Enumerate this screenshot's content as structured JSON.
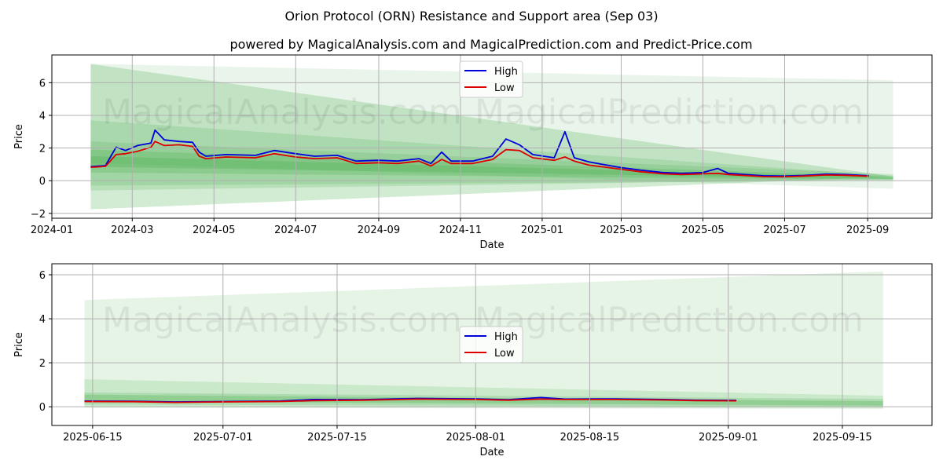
{
  "titles": {
    "main": "Orion Protocol (ORN) Resistance and Support area (Sep 03)",
    "sub": "powered by MagicalAnalysis.com and MagicalPrediction.com and Predict-Price.com"
  },
  "watermarks": [
    "MagicalAnalysis.com",
    "MagicalPrediction.com"
  ],
  "colors": {
    "high": "#0000dd",
    "low": "#dd0000",
    "band": "#4caf50",
    "grid": "#b0b0b0"
  },
  "chart_data": [
    {
      "type": "line",
      "xlabel": "Date",
      "ylabel": "Price",
      "xlim": [
        "2024-01-01",
        "2025-10-19"
      ],
      "ylim": [
        -2.3,
        7.7
      ],
      "grid": true,
      "legend": "top-center",
      "x_ticks": [
        "2024-01",
        "2024-03",
        "2024-05",
        "2024-07",
        "2024-09",
        "2024-11",
        "2025-01",
        "2025-03",
        "2025-05",
        "2025-07",
        "2025-09"
      ],
      "y_ticks": [
        -2,
        0,
        2,
        4,
        6
      ],
      "series": [
        {
          "name": "High",
          "color": "#0000dd",
          "points": [
            [
              "2024-01-30",
              0.86
            ],
            [
              "2024-02-10",
              0.92
            ],
            [
              "2024-02-18",
              2.05
            ],
            [
              "2024-02-25",
              1.85
            ],
            [
              "2024-03-05",
              2.15
            ],
            [
              "2024-03-15",
              2.3
            ],
            [
              "2024-03-18",
              3.1
            ],
            [
              "2024-03-25",
              2.5
            ],
            [
              "2024-04-05",
              2.4
            ],
            [
              "2024-04-15",
              2.35
            ],
            [
              "2024-04-20",
              1.75
            ],
            [
              "2024-04-25",
              1.5
            ],
            [
              "2024-05-10",
              1.6
            ],
            [
              "2024-06-01",
              1.55
            ],
            [
              "2024-06-15",
              1.85
            ],
            [
              "2024-07-01",
              1.65
            ],
            [
              "2024-07-15",
              1.5
            ],
            [
              "2024-08-01",
              1.55
            ],
            [
              "2024-08-15",
              1.2
            ],
            [
              "2024-09-01",
              1.25
            ],
            [
              "2024-09-15",
              1.2
            ],
            [
              "2024-10-01",
              1.35
            ],
            [
              "2024-10-10",
              1.05
            ],
            [
              "2024-10-18",
              1.75
            ],
            [
              "2024-10-25",
              1.2
            ],
            [
              "2024-11-10",
              1.2
            ],
            [
              "2024-11-25",
              1.5
            ],
            [
              "2024-12-05",
              2.55
            ],
            [
              "2024-12-15",
              2.2
            ],
            [
              "2024-12-25",
              1.6
            ],
            [
              "2025-01-10",
              1.4
            ],
            [
              "2025-01-18",
              3.0
            ],
            [
              "2025-01-25",
              1.4
            ],
            [
              "2025-02-05",
              1.15
            ],
            [
              "2025-02-15",
              1.0
            ],
            [
              "2025-03-01",
              0.8
            ],
            [
              "2025-03-15",
              0.65
            ],
            [
              "2025-04-01",
              0.5
            ],
            [
              "2025-04-15",
              0.45
            ],
            [
              "2025-05-01",
              0.5
            ],
            [
              "2025-05-12",
              0.75
            ],
            [
              "2025-05-20",
              0.45
            ],
            [
              "2025-06-15",
              0.3
            ],
            [
              "2025-07-01",
              0.28
            ],
            [
              "2025-07-15",
              0.32
            ],
            [
              "2025-08-01",
              0.4
            ],
            [
              "2025-08-15",
              0.38
            ],
            [
              "2025-09-02",
              0.3
            ]
          ]
        },
        {
          "name": "Low",
          "color": "#dd0000",
          "points": [
            [
              "2024-01-30",
              0.82
            ],
            [
              "2024-02-10",
              0.88
            ],
            [
              "2024-02-18",
              1.6
            ],
            [
              "2024-02-25",
              1.65
            ],
            [
              "2024-03-05",
              1.8
            ],
            [
              "2024-03-15",
              2.05
            ],
            [
              "2024-03-18",
              2.4
            ],
            [
              "2024-03-25",
              2.15
            ],
            [
              "2024-04-05",
              2.2
            ],
            [
              "2024-04-15",
              2.1
            ],
            [
              "2024-04-20",
              1.5
            ],
            [
              "2024-04-25",
              1.35
            ],
            [
              "2024-05-10",
              1.45
            ],
            [
              "2024-06-01",
              1.4
            ],
            [
              "2024-06-15",
              1.65
            ],
            [
              "2024-07-01",
              1.45
            ],
            [
              "2024-07-15",
              1.35
            ],
            [
              "2024-08-01",
              1.4
            ],
            [
              "2024-08-15",
              1.05
            ],
            [
              "2024-09-01",
              1.1
            ],
            [
              "2024-09-15",
              1.05
            ],
            [
              "2024-10-01",
              1.2
            ],
            [
              "2024-10-10",
              0.9
            ],
            [
              "2024-10-18",
              1.3
            ],
            [
              "2024-10-25",
              1.05
            ],
            [
              "2024-11-10",
              1.05
            ],
            [
              "2024-11-25",
              1.3
            ],
            [
              "2024-12-05",
              1.9
            ],
            [
              "2024-12-15",
              1.85
            ],
            [
              "2024-12-25",
              1.4
            ],
            [
              "2025-01-10",
              1.25
            ],
            [
              "2025-01-18",
              1.45
            ],
            [
              "2025-01-25",
              1.2
            ],
            [
              "2025-02-05",
              0.95
            ],
            [
              "2025-02-15",
              0.85
            ],
            [
              "2025-03-01",
              0.7
            ],
            [
              "2025-03-15",
              0.55
            ],
            [
              "2025-04-01",
              0.42
            ],
            [
              "2025-04-15",
              0.38
            ],
            [
              "2025-05-01",
              0.42
            ],
            [
              "2025-05-12",
              0.45
            ],
            [
              "2025-05-20",
              0.38
            ],
            [
              "2025-06-15",
              0.25
            ],
            [
              "2025-07-01",
              0.24
            ],
            [
              "2025-07-15",
              0.28
            ],
            [
              "2025-08-01",
              0.35
            ],
            [
              "2025-08-15",
              0.33
            ],
            [
              "2025-09-02",
              0.27
            ]
          ]
        }
      ],
      "bands": [
        {
          "x_start": "2024-01-30",
          "x_end": "2025-09-20",
          "start": [
            -1.75,
            7.15
          ],
          "end": [
            0.25,
            0.25
          ],
          "opacity": 0.25
        },
        {
          "x_start": "2024-01-30",
          "x_end": "2025-09-20",
          "start": [
            1.1,
            7.15
          ],
          "end": [
            -0.5,
            6.15
          ],
          "opacity": 0.12
        },
        {
          "x_start": "2024-01-30",
          "x_end": "2025-09-20",
          "start": [
            -0.6,
            3.7
          ],
          "end": [
            0.1,
            0.3
          ],
          "opacity": 0.2
        },
        {
          "x_start": "2024-01-30",
          "x_end": "2025-09-20",
          "start": [
            -0.3,
            2.4
          ],
          "end": [
            0.0,
            0.4
          ],
          "opacity": 0.2
        },
        {
          "x_start": "2024-01-30",
          "x_end": "2025-09-20",
          "start": [
            0.5,
            1.9
          ],
          "end": [
            0.05,
            0.25
          ],
          "opacity": 0.25
        },
        {
          "x_start": "2024-01-30",
          "x_end": "2025-09-20",
          "start": [
            0.85,
            1.5
          ],
          "end": [
            0.1,
            0.2
          ],
          "opacity": 0.3
        }
      ]
    },
    {
      "type": "line",
      "xlabel": "Date",
      "ylabel": "Price",
      "xlim": [
        "2025-06-10",
        "2025-09-26"
      ],
      "ylim": [
        -0.85,
        6.5
      ],
      "grid": true,
      "legend": "center",
      "x_ticks": [
        "2025-06-15",
        "2025-07-01",
        "2025-07-15",
        "2025-08-01",
        "2025-08-15",
        "2025-09-01",
        "2025-09-15"
      ],
      "y_ticks": [
        0,
        2,
        4,
        6
      ],
      "series": [
        {
          "name": "High",
          "color": "#0000dd",
          "points": [
            [
              "2025-06-14",
              0.26
            ],
            [
              "2025-06-20",
              0.25
            ],
            [
              "2025-06-25",
              0.22
            ],
            [
              "2025-07-01",
              0.24
            ],
            [
              "2025-07-08",
              0.26
            ],
            [
              "2025-07-12",
              0.33
            ],
            [
              "2025-07-18",
              0.32
            ],
            [
              "2025-07-25",
              0.38
            ],
            [
              "2025-08-01",
              0.36
            ],
            [
              "2025-08-05",
              0.32
            ],
            [
              "2025-08-09",
              0.42
            ],
            [
              "2025-08-12",
              0.35
            ],
            [
              "2025-08-18",
              0.36
            ],
            [
              "2025-08-24",
              0.33
            ],
            [
              "2025-08-28",
              0.3
            ],
            [
              "2025-09-02",
              0.29
            ]
          ]
        },
        {
          "name": "Low",
          "color": "#dd0000",
          "points": [
            [
              "2025-06-14",
              0.24
            ],
            [
              "2025-06-20",
              0.23
            ],
            [
              "2025-06-25",
              0.2
            ],
            [
              "2025-07-01",
              0.22
            ],
            [
              "2025-07-08",
              0.24
            ],
            [
              "2025-07-12",
              0.28
            ],
            [
              "2025-07-18",
              0.3
            ],
            [
              "2025-07-25",
              0.35
            ],
            [
              "2025-08-01",
              0.33
            ],
            [
              "2025-08-05",
              0.3
            ],
            [
              "2025-08-09",
              0.35
            ],
            [
              "2025-08-12",
              0.33
            ],
            [
              "2025-08-18",
              0.33
            ],
            [
              "2025-08-24",
              0.31
            ],
            [
              "2025-08-28",
              0.28
            ],
            [
              "2025-09-02",
              0.27
            ]
          ]
        }
      ],
      "bands": [
        {
          "x_start": "2025-06-14",
          "x_end": "2025-09-20",
          "start": [
            -0.05,
            4.85
          ],
          "end": [
            -0.1,
            6.15
          ],
          "opacity": 0.14
        },
        {
          "x_start": "2025-06-14",
          "x_end": "2025-09-20",
          "start": [
            0.0,
            1.25
          ],
          "end": [
            -0.05,
            0.5
          ],
          "opacity": 0.18
        },
        {
          "x_start": "2025-06-14",
          "x_end": "2025-09-20",
          "start": [
            0.1,
            0.65
          ],
          "end": [
            0.0,
            0.35
          ],
          "opacity": 0.22
        },
        {
          "x_start": "2025-06-14",
          "x_end": "2025-09-20",
          "start": [
            0.25,
            0.55
          ],
          "end": [
            0.05,
            0.25
          ],
          "opacity": 0.3
        }
      ]
    }
  ]
}
